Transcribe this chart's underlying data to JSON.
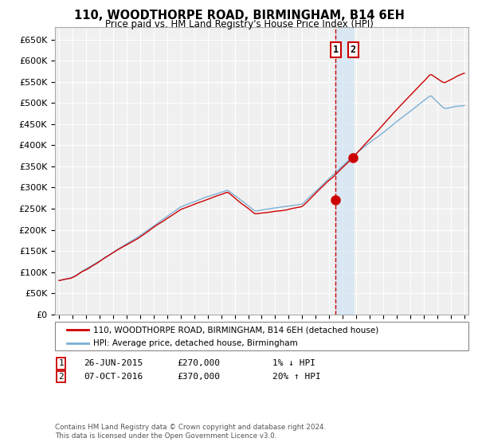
{
  "title": "110, WOODTHORPE ROAD, BIRMINGHAM, B14 6EH",
  "subtitle": "Price paid vs. HM Land Registry's House Price Index (HPI)",
  "legend_line1": "110, WOODTHORPE ROAD, BIRMINGHAM, B14 6EH (detached house)",
  "legend_line2": "HPI: Average price, detached house, Birmingham",
  "footer": "Contains HM Land Registry data © Crown copyright and database right 2024.\nThis data is licensed under the Open Government Licence v3.0.",
  "transaction1_date": "26-JUN-2015",
  "transaction1_price": "£270,000",
  "transaction1_hpi": "1% ↓ HPI",
  "transaction2_date": "07-OCT-2016",
  "transaction2_price": "£370,000",
  "transaction2_hpi": "20% ↑ HPI",
  "sale1_x": 2015.48,
  "sale1_y": 270000,
  "sale2_x": 2016.77,
  "sale2_y": 370000,
  "hpi_color": "#7bafd4",
  "property_color": "#cc0000",
  "vline_color": "#cc0000",
  "shade_color": "#d0e4f5",
  "ylim_max": 680000,
  "xlim_start": 1994.7,
  "xlim_end": 2025.3,
  "yticks": [
    0,
    50000,
    100000,
    150000,
    200000,
    250000,
    300000,
    350000,
    400000,
    450000,
    500000,
    550000,
    600000,
    650000
  ],
  "ytick_labels": [
    "£0",
    "£50K",
    "£100K",
    "£150K",
    "£200K",
    "£250K",
    "£300K",
    "£350K",
    "£400K",
    "£450K",
    "£500K",
    "£550K",
    "£600K",
    "£650K"
  ],
  "xticks": [
    1995,
    1996,
    1997,
    1998,
    1999,
    2000,
    2001,
    2002,
    2003,
    2004,
    2005,
    2006,
    2007,
    2008,
    2009,
    2010,
    2011,
    2012,
    2013,
    2014,
    2015,
    2016,
    2017,
    2018,
    2019,
    2020,
    2021,
    2022,
    2023,
    2024,
    2025
  ],
  "bg_color": "#f0f0f0",
  "grid_color": "#ffffff"
}
